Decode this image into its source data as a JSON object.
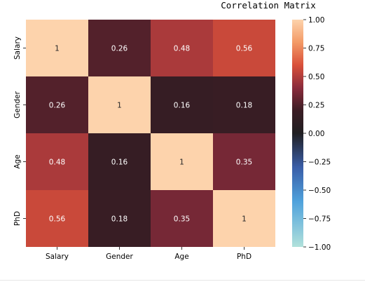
{
  "chart_data": {
    "type": "heatmap",
    "title": "Correlation Matrix",
    "row_labels": [
      "Salary",
      "Gender",
      "Age",
      "PhD"
    ],
    "col_labels": [
      "Salary",
      "Gender",
      "Age",
      "PhD"
    ],
    "values": [
      [
        1,
        0.26,
        0.48,
        0.56
      ],
      [
        0.26,
        1,
        0.16,
        0.18
      ],
      [
        0.48,
        0.16,
        1,
        0.35
      ],
      [
        0.56,
        0.18,
        0.35,
        1
      ]
    ],
    "value_labels": [
      [
        "1",
        "0.26",
        "0.48",
        "0.56"
      ],
      [
        "0.26",
        "1",
        "0.16",
        "0.18"
      ],
      [
        "0.48",
        "0.16",
        "1",
        "0.35"
      ],
      [
        "0.56",
        "0.18",
        "0.35",
        "1"
      ]
    ],
    "colorbar": {
      "vmin": -1.0,
      "vmax": 1.0,
      "ticks": [
        "1.00",
        "0.75",
        "0.50",
        "0.25",
        "0.00",
        "−0.25",
        "−0.50",
        "−0.75",
        "−1.00"
      ],
      "tick_values": [
        1.0,
        0.75,
        0.5,
        0.25,
        0.0,
        -0.25,
        -0.5,
        -0.75,
        -1.0
      ],
      "colormap": "icefire",
      "stops": [
        {
          "v": -1.0,
          "c": "#b1e1db"
        },
        {
          "v": -0.6,
          "c": "#4fa2dc"
        },
        {
          "v": -0.3,
          "c": "#3a5ea8"
        },
        {
          "v": 0.0,
          "c": "#201f22"
        },
        {
          "v": 0.2,
          "c": "#3b1d24"
        },
        {
          "v": 0.4,
          "c": "#8a2b3c"
        },
        {
          "v": 0.6,
          "c": "#d9503a"
        },
        {
          "v": 0.8,
          "c": "#f39a66"
        },
        {
          "v": 1.0,
          "c": "#fdd3ac"
        }
      ]
    },
    "text_color_light": "#ffffff",
    "text_color_dark": "#262626"
  }
}
